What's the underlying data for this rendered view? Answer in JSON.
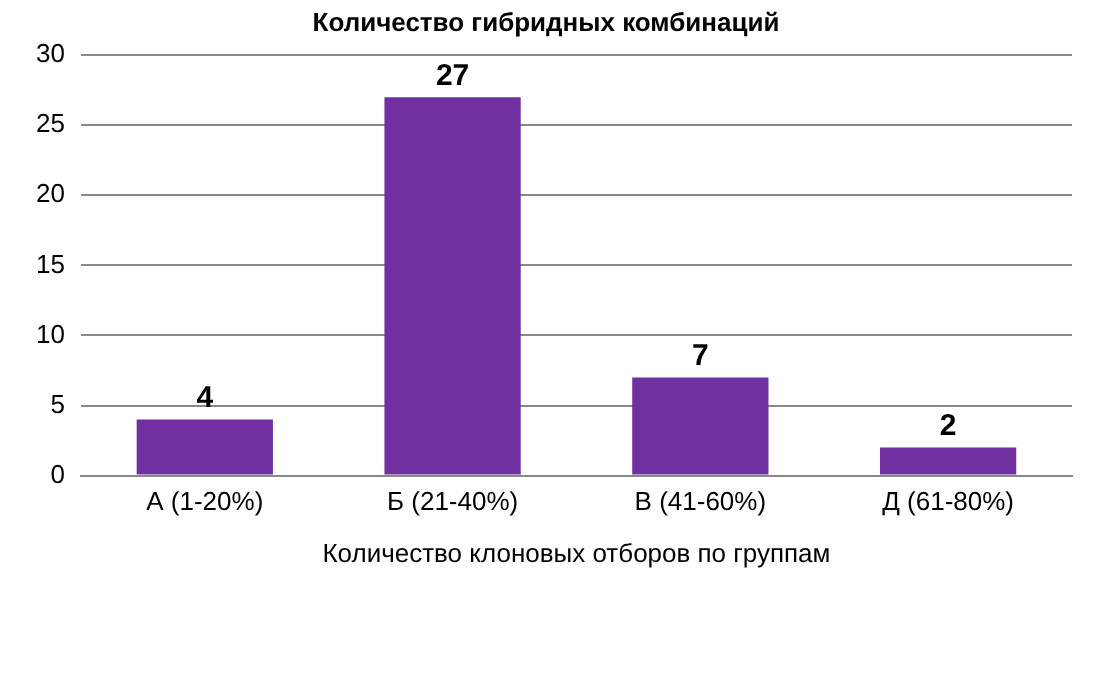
{
  "chart_data": {
    "type": "bar",
    "title": "Количество гибридных комбинаций",
    "xlabel": "Количество клоновых отборов по группам",
    "categories": [
      "А (1-20%)",
      "Б (21-40%)",
      "В (41-60%)",
      "Д (61-80%)"
    ],
    "values": [
      4,
      27,
      7,
      2
    ],
    "color": "#7030a0",
    "ylim": [
      0,
      30
    ],
    "yticks": [
      0,
      5,
      10,
      15,
      20,
      25,
      30
    ],
    "grid": "y",
    "data_labels": true,
    "legend": false
  }
}
